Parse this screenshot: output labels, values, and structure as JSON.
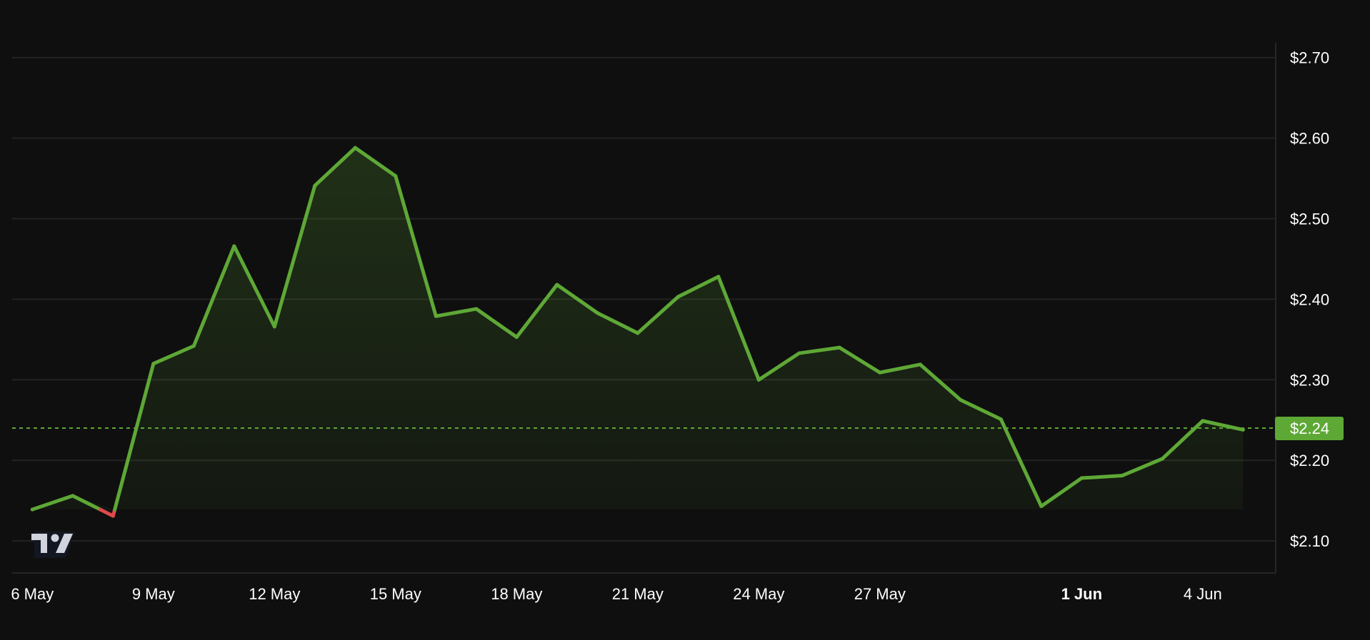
{
  "chart_data": {
    "type": "area",
    "style": "baseline",
    "x": [
      "6 May",
      "7 May",
      "8 May",
      "9 May",
      "10 May",
      "11 May",
      "12 May",
      "13 May",
      "14 May",
      "15 May",
      "16 May",
      "17 May",
      "18 May",
      "19 May",
      "20 May",
      "21 May",
      "22 May",
      "23 May",
      "24 May",
      "25 May",
      "26 May",
      "27 May",
      "28 May",
      "29 May",
      "30 May",
      "31 May",
      "1 Jun",
      "2 Jun",
      "3 Jun",
      "4 Jun",
      "5 Jun"
    ],
    "values": [
      2.139,
      2.156,
      2.131,
      2.32,
      2.342,
      2.466,
      2.366,
      2.541,
      2.588,
      2.553,
      2.379,
      2.388,
      2.353,
      2.418,
      2.383,
      2.358,
      2.403,
      2.428,
      2.3,
      2.333,
      2.34,
      2.309,
      2.319,
      2.275,
      2.251,
      2.143,
      2.178,
      2.181,
      2.202,
      2.249,
      2.238
    ],
    "baseline_value": 2.139,
    "ylim": [
      2.06,
      2.72
    ],
    "y_ticks": [
      2.1,
      2.2,
      2.3,
      2.4,
      2.5,
      2.6,
      2.7
    ],
    "y_tick_labels": [
      "$2.10",
      "$2.20",
      "$2.30",
      "$2.40",
      "$2.50",
      "$2.60",
      "$2.70"
    ],
    "x_tick_labels": [
      {
        "label": "6 May",
        "index": 0,
        "bold": false
      },
      {
        "label": "9 May",
        "index": 3,
        "bold": false
      },
      {
        "label": "12 May",
        "index": 6,
        "bold": false
      },
      {
        "label": "15 May",
        "index": 9,
        "bold": false
      },
      {
        "label": "18 May",
        "index": 12,
        "bold": false
      },
      {
        "label": "21 May",
        "index": 15,
        "bold": false
      },
      {
        "label": "24 May",
        "index": 18,
        "bold": false
      },
      {
        "label": "27 May",
        "index": 21,
        "bold": false
      },
      {
        "label": "1 Jun",
        "index": 26,
        "bold": true
      },
      {
        "label": "4 Jun",
        "index": 29,
        "bold": false
      }
    ],
    "last_price_label": "$2.24",
    "last_price_value": 2.24,
    "grid": true,
    "y_axis_position": "right",
    "colors": {
      "up": "#5ea836",
      "down": "#e0494b",
      "background": "#0f0f0f",
      "grid": "#232323",
      "label_bg": "#5ea836"
    }
  },
  "logo": "TV"
}
